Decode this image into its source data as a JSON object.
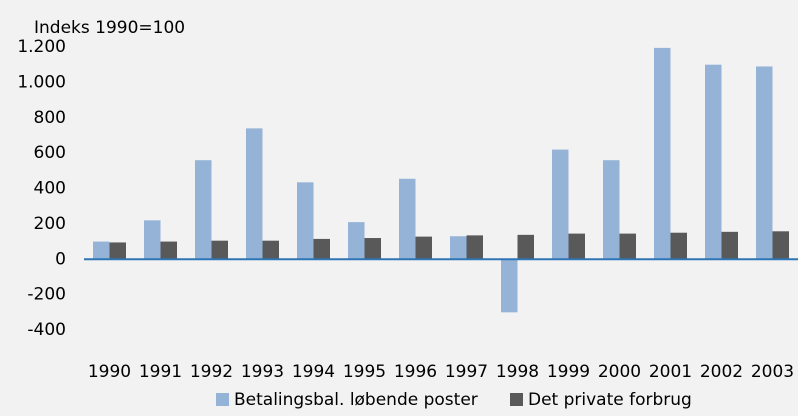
{
  "chart_data": {
    "type": "bar",
    "ylabel": "Indeks 1990=100",
    "categories": [
      "1990",
      "1991",
      "1992",
      "1993",
      "1994",
      "1995",
      "1996",
      "1997",
      "1998",
      "1999",
      "2000",
      "2001",
      "2002",
      "2003"
    ],
    "series": [
      {
        "name": "Betalingsbal. løbende poster",
        "color": "#95b3d7",
        "values": [
          100,
          220,
          560,
          740,
          435,
          210,
          455,
          130,
          -300,
          620,
          560,
          1195,
          1100,
          1090
        ]
      },
      {
        "name": "Det private forbrug",
        "color": "#595959",
        "values": [
          95,
          100,
          105,
          105,
          115,
          120,
          128,
          135,
          138,
          145,
          145,
          150,
          155,
          158
        ]
      }
    ],
    "ylim": [
      -400,
      1200
    ],
    "yticks": [
      -400,
      -200,
      0,
      200,
      400,
      600,
      800,
      {
        "value": 1000,
        "label": "1.000"
      },
      {
        "value": 1200,
        "label": "1.200"
      }
    ],
    "zero_line_color": "#2e75b6"
  }
}
